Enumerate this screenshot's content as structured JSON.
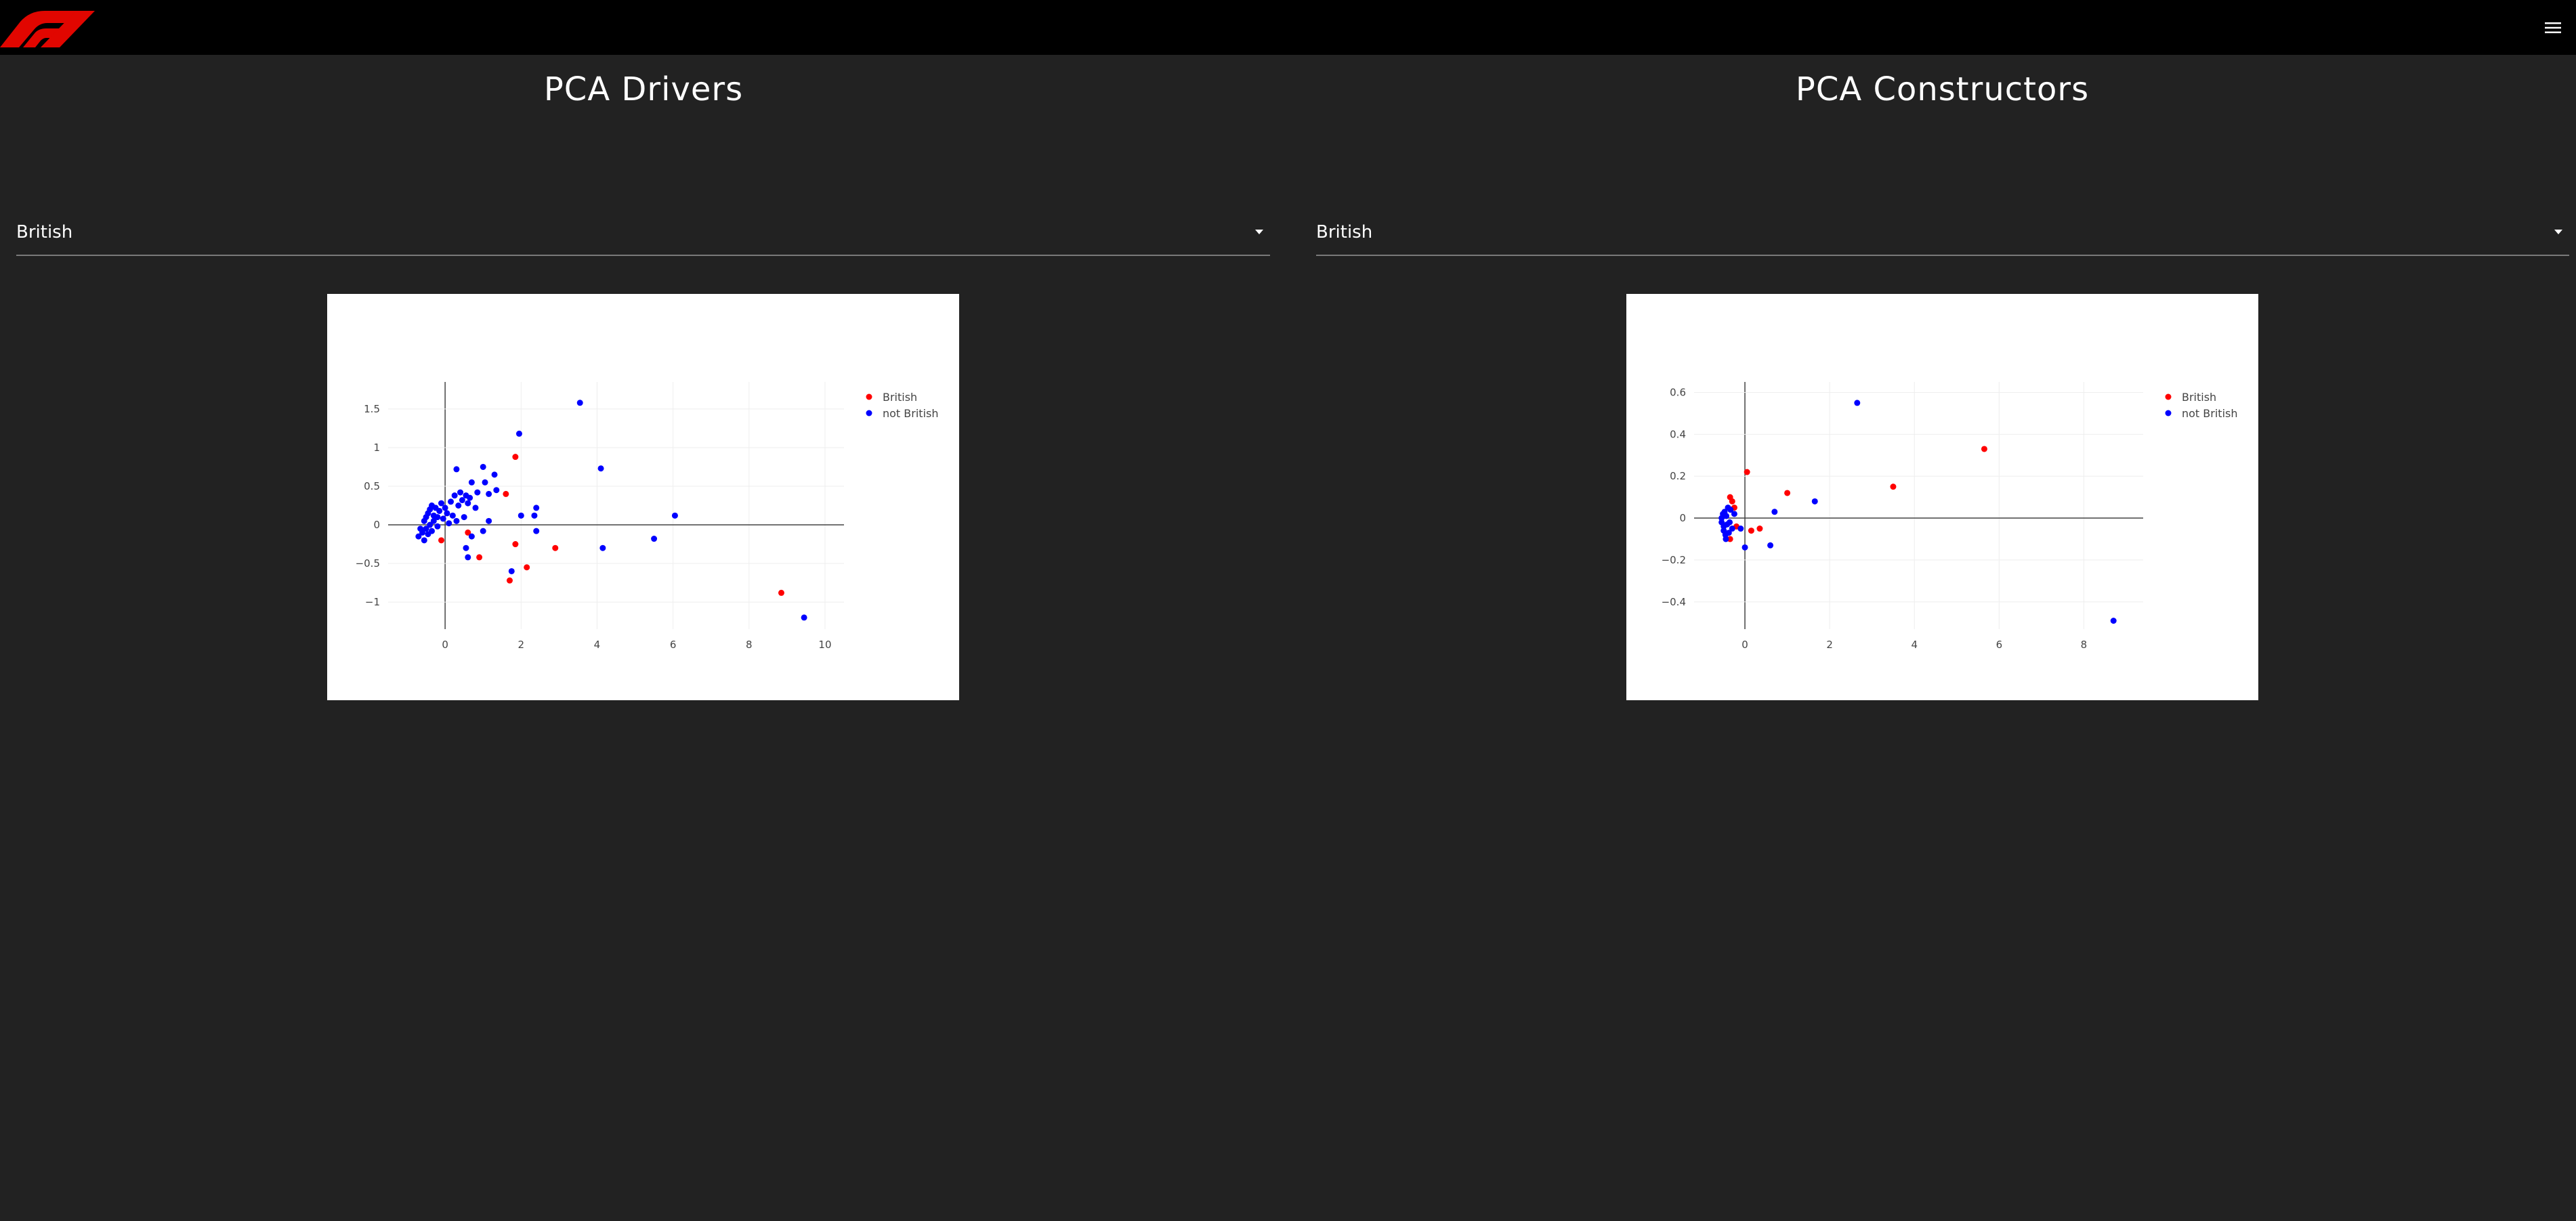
{
  "header": {
    "logo_icon": "f1-logo-icon",
    "menu_icon": "hamburger-menu-icon",
    "menu_color": "#e8322d"
  },
  "drivers": {
    "title": "PCA Drivers",
    "filter_value": "British"
  },
  "constructors": {
    "title": "PCA Constructors",
    "filter_value": "British"
  },
  "chart_data": [
    {
      "type": "scatter",
      "xlim": [
        -1.5,
        10.5
      ],
      "ylim": [
        -1.35,
        1.85
      ],
      "xticks": [
        0,
        2,
        4,
        6,
        8,
        10
      ],
      "xtick_labels": [
        "0",
        "2",
        "4",
        "6",
        "8",
        "10"
      ],
      "yticks": [
        -1,
        -0.5,
        0,
        0.5,
        1,
        1.5
      ],
      "ytick_labels": [
        "−1",
        "−0.5",
        "0",
        "0.5",
        "1",
        "1.5"
      ],
      "grid": true,
      "legend_position": "top-right",
      "series": [
        {
          "name": "British",
          "color": "#ff0000",
          "points": [
            [
              -0.1,
              -0.2
            ],
            [
              0.6,
              -0.1
            ],
            [
              0.9,
              -0.42
            ],
            [
              1.6,
              0.4
            ],
            [
              1.85,
              0.88
            ],
            [
              1.85,
              -0.25
            ],
            [
              1.7,
              -0.72
            ],
            [
              2.15,
              -0.55
            ],
            [
              2.9,
              -0.3
            ],
            [
              8.85,
              -0.88
            ]
          ]
        },
        {
          "name": "not British",
          "color": "#0000ff",
          "points": [
            [
              -0.7,
              -0.15
            ],
            [
              -0.65,
              -0.05
            ],
            [
              -0.6,
              -0.1
            ],
            [
              -0.55,
              0.05
            ],
            [
              -0.55,
              -0.2
            ],
            [
              -0.5,
              0.1
            ],
            [
              -0.5,
              -0.05
            ],
            [
              -0.45,
              0.15
            ],
            [
              -0.45,
              -0.12
            ],
            [
              -0.4,
              0.2
            ],
            [
              -0.4,
              0.0
            ],
            [
              -0.35,
              0.25
            ],
            [
              -0.35,
              -0.08
            ],
            [
              -0.3,
              0.12
            ],
            [
              -0.3,
              0.05
            ],
            [
              -0.25,
              0.22
            ],
            [
              -0.2,
              0.1
            ],
            [
              -0.2,
              -0.02
            ],
            [
              -0.15,
              0.18
            ],
            [
              -0.1,
              0.28
            ],
            [
              -0.05,
              0.08
            ],
            [
              0.0,
              0.22
            ],
            [
              0.05,
              0.15
            ],
            [
              0.1,
              0.02
            ],
            [
              0.15,
              0.3
            ],
            [
              0.2,
              0.12
            ],
            [
              0.25,
              0.38
            ],
            [
              0.3,
              0.72
            ],
            [
              0.3,
              0.05
            ],
            [
              0.35,
              0.25
            ],
            [
              0.4,
              0.42
            ],
            [
              0.45,
              0.32
            ],
            [
              0.5,
              0.1
            ],
            [
              0.55,
              0.38
            ],
            [
              0.55,
              -0.3
            ],
            [
              0.6,
              0.28
            ],
            [
              0.6,
              -0.42
            ],
            [
              0.65,
              0.35
            ],
            [
              0.7,
              0.55
            ],
            [
              0.7,
              -0.15
            ],
            [
              0.8,
              0.22
            ],
            [
              0.85,
              0.42
            ],
            [
              1.0,
              0.75
            ],
            [
              1.0,
              -0.08
            ],
            [
              1.05,
              0.55
            ],
            [
              1.15,
              0.4
            ],
            [
              1.15,
              0.05
            ],
            [
              1.3,
              0.65
            ],
            [
              1.35,
              0.45
            ],
            [
              1.75,
              -0.6
            ],
            [
              1.95,
              1.18
            ],
            [
              2.0,
              0.12
            ],
            [
              2.35,
              0.12
            ],
            [
              2.4,
              0.22
            ],
            [
              2.4,
              -0.08
            ],
            [
              3.55,
              1.58
            ],
            [
              4.1,
              0.73
            ],
            [
              4.15,
              -0.3
            ],
            [
              5.5,
              -0.18
            ],
            [
              6.05,
              0.12
            ],
            [
              9.45,
              -1.2
            ]
          ]
        }
      ]
    },
    {
      "type": "scatter",
      "xlim": [
        -1.2,
        9.4
      ],
      "ylim": [
        -0.53,
        0.65
      ],
      "xticks": [
        0,
        2,
        4,
        6,
        8
      ],
      "xtick_labels": [
        "0",
        "2",
        "4",
        "6",
        "8"
      ],
      "yticks": [
        -0.4,
        -0.2,
        0,
        0.2,
        0.4,
        0.6
      ],
      "ytick_labels": [
        "−0.4",
        "−0.2",
        "0",
        "0.2",
        "0.4",
        "0.6"
      ],
      "grid": true,
      "legend_position": "top-right",
      "series": [
        {
          "name": "British",
          "color": "#ff0000",
          "points": [
            [
              -0.35,
              0.1
            ],
            [
              -0.3,
              0.08
            ],
            [
              -0.25,
              0.05
            ],
            [
              -0.35,
              -0.1
            ],
            [
              -0.2,
              -0.04
            ],
            [
              0.05,
              0.22
            ],
            [
              0.15,
              -0.06
            ],
            [
              0.35,
              -0.05
            ],
            [
              1.0,
              0.12
            ],
            [
              3.5,
              0.15
            ],
            [
              5.65,
              0.33
            ]
          ]
        },
        {
          "name": "not British",
          "color": "#0000ff",
          "points": [
            [
              -0.55,
              0.0
            ],
            [
              -0.55,
              -0.02
            ],
            [
              -0.52,
              0.02
            ],
            [
              -0.5,
              -0.04
            ],
            [
              -0.5,
              -0.06
            ],
            [
              -0.48,
              0.03
            ],
            [
              -0.46,
              -0.08
            ],
            [
              -0.45,
              -0.1
            ],
            [
              -0.44,
              0.01
            ],
            [
              -0.42,
              -0.03
            ],
            [
              -0.4,
              0.05
            ],
            [
              -0.38,
              -0.07
            ],
            [
              -0.36,
              -0.02
            ],
            [
              -0.34,
              0.04
            ],
            [
              -0.3,
              -0.05
            ],
            [
              -0.25,
              0.02
            ],
            [
              -0.1,
              -0.05
            ],
            [
              0.0,
              -0.14
            ],
            [
              0.7,
              0.03
            ],
            [
              0.6,
              -0.13
            ],
            [
              1.65,
              0.08
            ],
            [
              2.65,
              0.55
            ],
            [
              8.7,
              -0.49
            ]
          ]
        }
      ]
    }
  ]
}
